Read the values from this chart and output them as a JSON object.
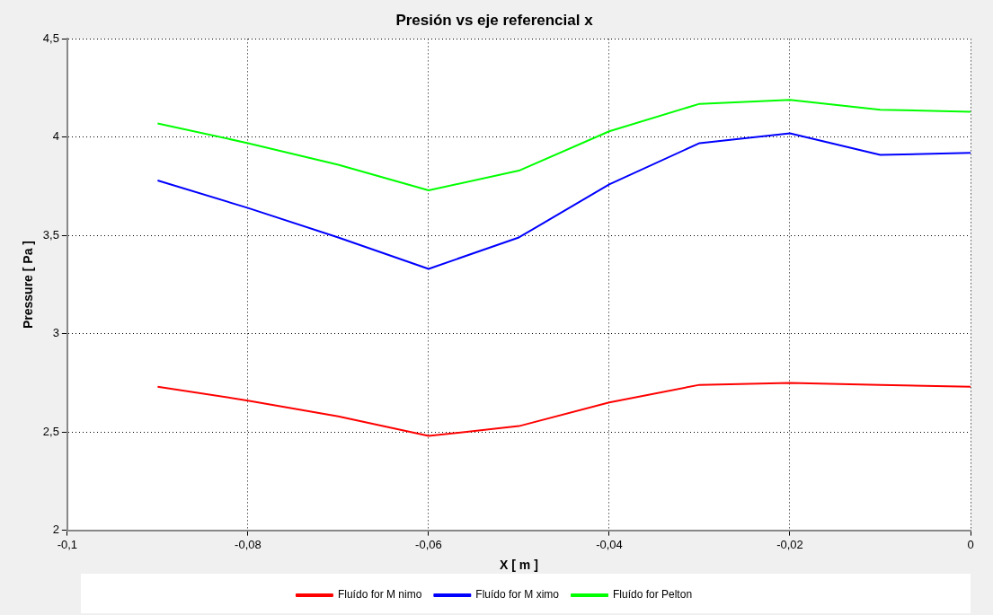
{
  "chart_data": {
    "type": "line",
    "title": "Presión vs eje referencial x",
    "xlabel": "X [ m ]",
    "ylabel": "Pressure [ Pa ]",
    "x": [
      -0.09,
      -0.08,
      -0.07,
      -0.06,
      -0.05,
      -0.04,
      -0.03,
      -0.02,
      -0.01,
      0
    ],
    "series": [
      {
        "name": "Fluído for M nimo",
        "color": "#ff0000",
        "values": [
          2.73,
          2.66,
          2.58,
          2.48,
          2.53,
          2.65,
          2.74,
          2.75,
          2.74,
          2.73
        ]
      },
      {
        "name": "Fluído for M ximo",
        "color": "#0000ff",
        "values": [
          3.78,
          3.64,
          3.49,
          3.33,
          3.49,
          3.76,
          3.97,
          4.02,
          3.91,
          3.92
        ]
      },
      {
        "name": "Fluído for Pelton",
        "color": "#00ff00",
        "values": [
          4.07,
          3.97,
          3.86,
          3.73,
          3.83,
          4.03,
          4.17,
          4.19,
          4.14,
          4.13
        ]
      }
    ],
    "xlim": [
      -0.1,
      0
    ],
    "ylim": [
      2,
      4.5
    ],
    "xticks": [
      {
        "value": -0.1,
        "label": "-0,1"
      },
      {
        "value": -0.08,
        "label": "-0,08"
      },
      {
        "value": -0.06,
        "label": "-0,06"
      },
      {
        "value": -0.04,
        "label": "-0,04"
      },
      {
        "value": -0.02,
        "label": "-0,02"
      },
      0
    ],
    "yticks": [
      2,
      {
        "value": 2.5,
        "label": "2,5"
      },
      3,
      {
        "value": 3.5,
        "label": "3,5"
      },
      4,
      {
        "value": 4.5,
        "label": "4,5"
      }
    ],
    "grid": true,
    "legend": "bottom",
    "marker": "none",
    "line_style": "solid"
  }
}
